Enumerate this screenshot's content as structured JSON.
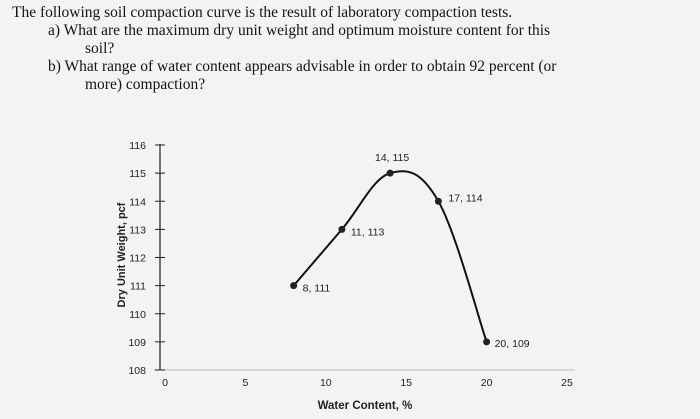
{
  "question": {
    "intro": "The following soil compaction curve is the result of laboratory compaction tests.",
    "part_a_label": "a)",
    "part_a_line1": "What are the maximum dry unit weight and optimum moisture content for this",
    "part_a_line2": "soil?",
    "part_b_label": "b)",
    "part_b_line1": "What range of water content appears advisable in order to obtain 92 percent (or",
    "part_b_line2": "more) compaction?"
  },
  "chart_data": {
    "type": "line",
    "xlabel": "Water Content, %",
    "ylabel": "Dry Unit Weight, pcf",
    "xlim": [
      0,
      25
    ],
    "ylim": [
      108,
      116
    ],
    "x_ticks": [
      "0",
      "5",
      "10",
      "15",
      "20",
      "25"
    ],
    "y_ticks": [
      "108",
      "109",
      "110",
      "111",
      "112",
      "113",
      "114",
      "115",
      "116"
    ],
    "series": [
      {
        "points": [
          {
            "x": 8,
            "y": 111,
            "label": "8, 111"
          },
          {
            "x": 11,
            "y": 113,
            "label": "11, 113"
          },
          {
            "x": 14,
            "y": 115,
            "label": "14, 115"
          },
          {
            "x": 17,
            "y": 114,
            "label": "17, 114"
          },
          {
            "x": 20,
            "y": 109,
            "label": "20, 109"
          }
        ]
      }
    ],
    "line_color": "#111111",
    "marker_color": "#222222"
  }
}
